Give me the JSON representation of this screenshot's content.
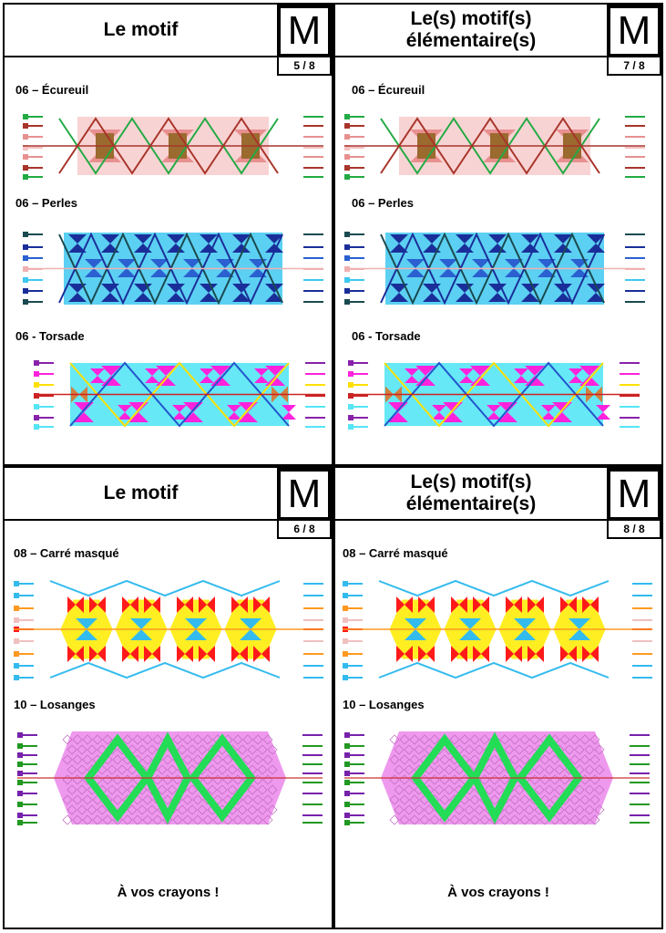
{
  "cards": [
    {
      "title": "Le motif",
      "m": "M",
      "page": "5 / 8",
      "patterns": [
        "06 – Écureuil",
        "06 – Perles",
        "06 - Torsade"
      ]
    },
    {
      "title": "Le(s) motif(s) élémentaire(s)",
      "m": "M",
      "page": "7 / 8",
      "patterns": [
        "06 – Écureuil",
        "06 – Perles",
        "06 - Torsade"
      ]
    },
    {
      "title": "Le motif",
      "m": "M",
      "page": "6 / 8",
      "patterns": [
        "08 – Carré masqué",
        "10 – Losanges"
      ],
      "footer": "À vos crayons !"
    },
    {
      "title": "Le(s) motif(s) élémentaire(s)",
      "m": "M",
      "page": "8 / 8",
      "patterns": [
        "08 – Carré masqué",
        "10 – Losanges"
      ],
      "footer": "À vos crayons !"
    }
  ],
  "colors": {
    "ecureuil": [
      "#e89090",
      "#9a6a2e",
      "#22aa44",
      "#a8342a",
      "#f5c0c0"
    ],
    "perles": [
      "#1a2e9a",
      "#3fc8f0",
      "#1a4a50",
      "#f0b0b0",
      "#2a60d0"
    ],
    "torsade": [
      "#ff22dd",
      "#55e5f5",
      "#ffe000",
      "#8822aa",
      "#cc2222"
    ],
    "carre": [
      "#ff1a1a",
      "#ffee22",
      "#33bbee",
      "#ff9922",
      "#f0c0c0"
    ],
    "losanges": [
      "#ee99ee",
      "#22dd55",
      "#7722aa",
      "#229922",
      "#cc3333"
    ]
  }
}
